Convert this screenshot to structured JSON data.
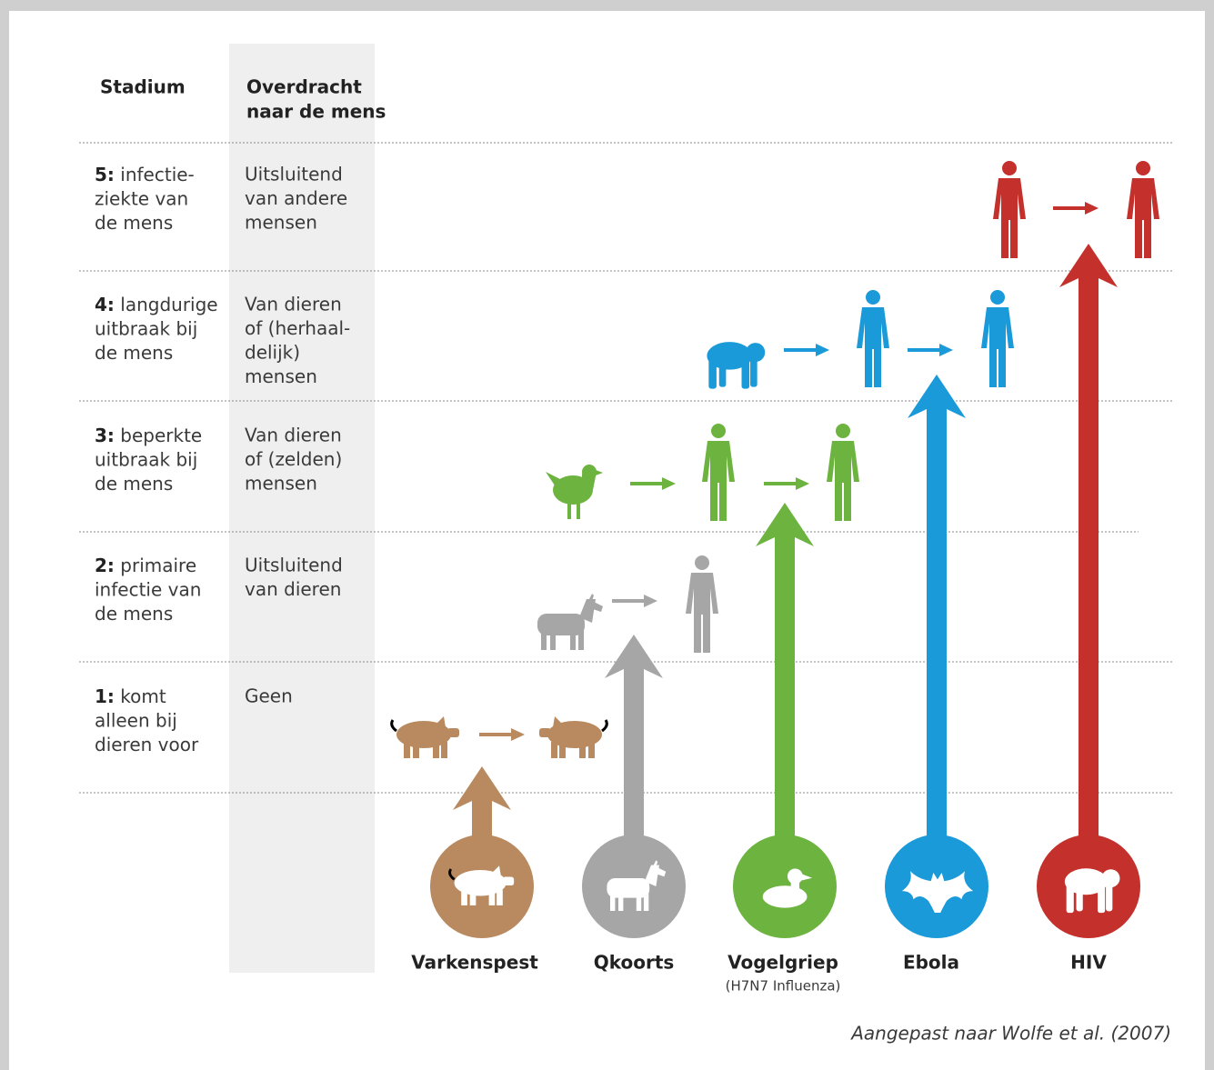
{
  "header": {
    "stadium": "Stadium",
    "transmission": [
      "Overdracht",
      "naar de mens"
    ]
  },
  "stages": [
    {
      "number": "5:",
      "description": [
        "infectie-",
        "ziekte van",
        "de mens"
      ],
      "transmission": [
        "Uitsluitend",
        "van andere",
        "mensen"
      ]
    },
    {
      "number": "4:",
      "description": [
        "langdurige",
        "uitbraak bij",
        "de mens"
      ],
      "transmission": [
        "Van dieren",
        "of (herhaal-",
        "delijk)",
        "mensen"
      ]
    },
    {
      "number": "3:",
      "description": [
        "beperkte",
        "uitbraak bij",
        "de mens"
      ],
      "transmission": [
        "Van dieren",
        "of (zelden)",
        "mensen"
      ]
    },
    {
      "number": "2:",
      "description": [
        "primaire",
        "infectie van",
        "de mens"
      ],
      "transmission": [
        "Uitsluitend",
        "van dieren"
      ]
    },
    {
      "number": "1:",
      "description": [
        "komt",
        "alleen bij",
        "dieren voor"
      ],
      "transmission": [
        "Geen"
      ]
    }
  ],
  "diseases": [
    {
      "name": "Varkenspest"
    },
    {
      "name": "Qkoorts"
    },
    {
      "name": "Vogelgriep",
      "subtitle": "(H7N7 Influenza)"
    },
    {
      "name": "Ebola"
    },
    {
      "name": "HIV"
    }
  ],
  "credit": "Aangepast naar Wolfe et al. (2007)"
}
